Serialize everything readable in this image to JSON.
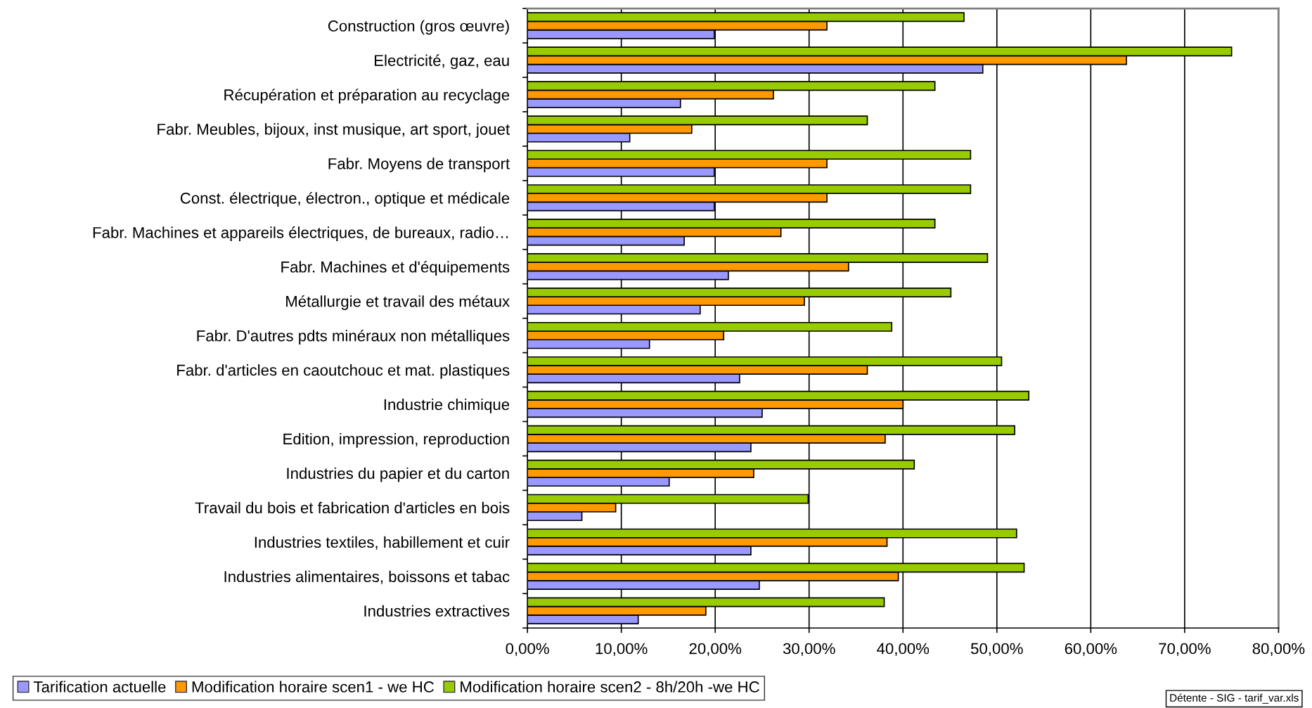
{
  "chart_data": {
    "type": "bar",
    "orientation": "horizontal",
    "categories": [
      "Construction (gros œuvre)",
      "Electricité, gaz, eau",
      "Récupération et préparation au recyclage",
      "Fabr. Meubles, bijoux, inst musique, art sport, jouet",
      "Fabr. Moyens de transport",
      "Const. électrique, électron., optique et médicale",
      "Fabr. Machines et appareils électriques, de bureaux, radio…",
      "Fabr. Machines et d'équipements",
      "Métallurgie et travail des métaux",
      "Fabr. D'autres pdts minéraux non métalliques",
      "Fabr. d'articles en caoutchouc et mat. plastiques",
      "Industrie chimique",
      "Edition, impression, reproduction",
      "Industries du papier et du carton",
      "Travail du bois et fabrication d'articles en bois",
      "Industries textiles, habillement et cuir",
      "Industries alimentaires, boissons et tabac",
      "Industries extractives"
    ],
    "series": [
      {
        "name": "Tarification actuelle",
        "color": "#9999ff",
        "values": [
          19.9,
          48.5,
          16.3,
          10.9,
          19.9,
          19.9,
          16.7,
          21.4,
          18.4,
          13.0,
          22.6,
          25.0,
          23.8,
          15.1,
          5.8,
          23.8,
          24.7,
          11.8
        ]
      },
      {
        "name": "Modification horaire scen1 - we HC",
        "color": "#ff9900",
        "values": [
          31.9,
          63.8,
          26.2,
          17.5,
          31.9,
          31.9,
          27.0,
          34.2,
          29.5,
          20.9,
          36.2,
          40.0,
          38.1,
          24.1,
          9.4,
          38.3,
          39.5,
          19.0
        ]
      },
      {
        "name": "Modification horaire scen2 - 8h/20h -we HC",
        "color": "#99cc00",
        "values": [
          46.5,
          75.0,
          43.4,
          36.2,
          47.2,
          47.2,
          43.4,
          49.0,
          45.1,
          38.8,
          50.5,
          53.4,
          51.9,
          41.2,
          29.9,
          52.1,
          52.9,
          38.0
        ]
      }
    ],
    "xlim": [
      0,
      80
    ],
    "xticks": [
      {
        "value": 0,
        "label": "0,00%"
      },
      {
        "value": 10,
        "label": "10,00%"
      },
      {
        "value": 20,
        "label": "20,00%"
      },
      {
        "value": 30,
        "label": "30,00%"
      },
      {
        "value": 40,
        "label": "40,00%"
      },
      {
        "value": 50,
        "label": "50,00%"
      },
      {
        "value": 60,
        "label": "60,00%"
      },
      {
        "value": 70,
        "label": "70,00%"
      },
      {
        "value": 80,
        "label": "80,00%"
      }
    ],
    "grid": "x",
    "legend": "bottom left",
    "annotations": [
      "Détente - SIG - tarif_var.xls"
    ]
  }
}
